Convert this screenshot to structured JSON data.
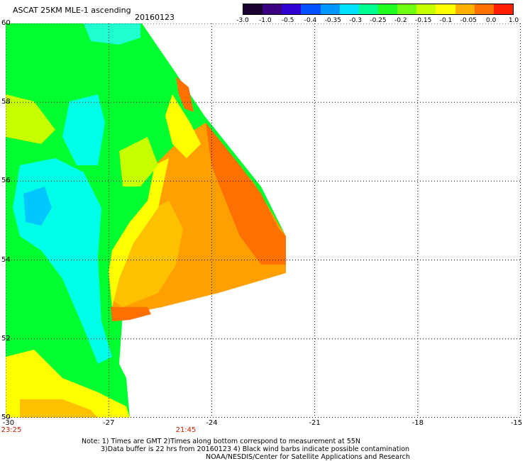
{
  "header": {
    "title": "ASCAT 25KM MLE-1 ascending",
    "date": "20160123"
  },
  "colorbar": {
    "labels": [
      "-3.0",
      "-1.0",
      "-0.5",
      "-0.4",
      "-0.35",
      "-0.3",
      "-0.25",
      "-0.2",
      "-0.15",
      "-0.1",
      "-0.05",
      "0.0",
      "1.0"
    ],
    "colors": [
      "#1a0030",
      "#3a0080",
      "#3000d0",
      "#0050ff",
      "#0098ff",
      "#00e0ff",
      "#00ff90",
      "#20ff20",
      "#70ff10",
      "#c8ff00",
      "#ffff00",
      "#ffb000",
      "#ff7000",
      "#ff2000"
    ]
  },
  "map": {
    "lat_labels": [
      "60",
      "58",
      "56",
      "54",
      "52",
      "50"
    ],
    "lon_labels": [
      "-30",
      "-27",
      "-24",
      "-21",
      "-18",
      "-15"
    ],
    "time_labels": [
      "23:25",
      "21:45"
    ],
    "field_colors": {
      "cyan": "#00ffe6",
      "light_cyan": "#20ffd0",
      "green": "#00ff30",
      "light_green": "#60ff20",
      "yellow_green": "#c8ff00",
      "yellow": "#ffff00",
      "light_orange": "#ffc000",
      "orange": "#ffa000",
      "dark_orange": "#ff7000"
    }
  },
  "notes": {
    "line1": "Note: 1) Times are GMT 2)Times along bottom correspond to measurement at 55N",
    "line2": "3)Data buffer is 22 hrs from 20160123 4) Black wind barbs indicate possible contamination",
    "line3": "NOAA/NESDIS/Center for Satellite Applications and Research"
  }
}
